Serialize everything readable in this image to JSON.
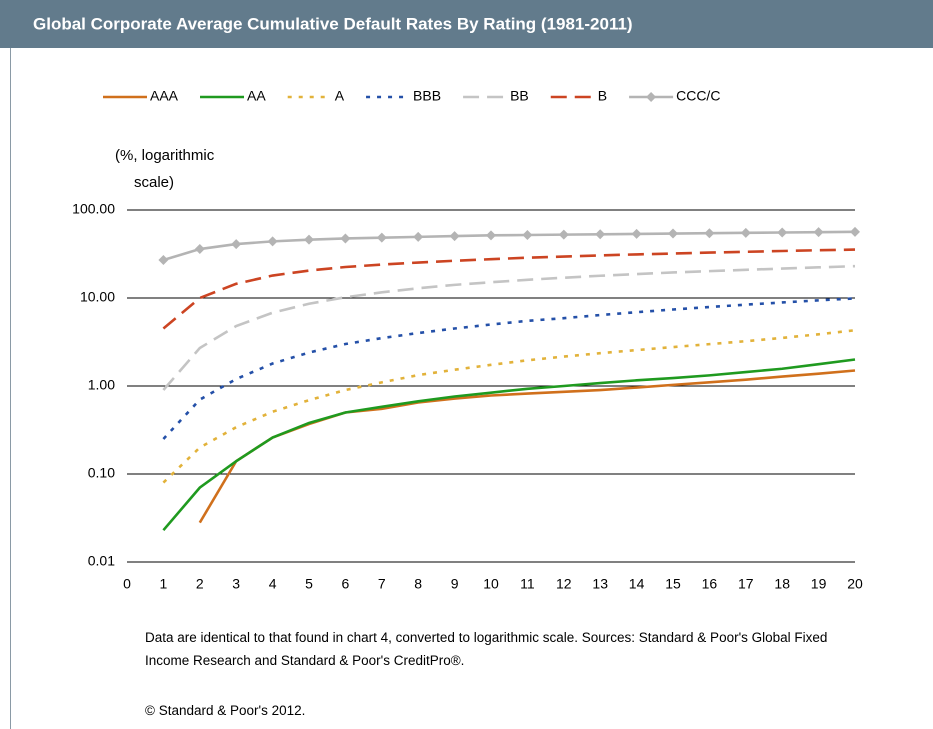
{
  "chart_data": {
    "type": "line",
    "title": "Global Corporate Average Cumulative Default Rates By Rating (1981-2011)",
    "ylabel": [
      "(%, logarithmic",
      "scale)"
    ],
    "x": [
      1,
      2,
      3,
      4,
      5,
      6,
      7,
      8,
      9,
      10,
      11,
      12,
      13,
      14,
      15,
      16,
      17,
      18,
      19,
      20
    ],
    "xlim": [
      0,
      20
    ],
    "xticks": [
      0,
      1,
      2,
      3,
      4,
      5,
      6,
      7,
      8,
      9,
      10,
      11,
      12,
      13,
      14,
      15,
      16,
      17,
      18,
      19,
      20
    ],
    "ylim": [
      0.01,
      100
    ],
    "yticks": [
      {
        "value": 0.01,
        "label": "0.01"
      },
      {
        "value": 0.1,
        "label": "0.10"
      },
      {
        "value": 1,
        "label": "1.00"
      },
      {
        "value": 10,
        "label": "10.00"
      },
      {
        "value": 100,
        "label": "100.00"
      }
    ],
    "log_scale": true,
    "grid": true,
    "legend": "top",
    "series": [
      {
        "name": "AAA",
        "color": "#d0701c",
        "style": "solid",
        "values": [
          null,
          0.028,
          0.14,
          0.26,
          0.37,
          0.5,
          0.55,
          0.65,
          0.72,
          0.78,
          0.82,
          0.86,
          0.9,
          0.96,
          1.03,
          1.1,
          1.18,
          1.28,
          1.38,
          1.5
        ]
      },
      {
        "name": "AA",
        "color": "#1f9a1f",
        "style": "solid",
        "values": [
          0.023,
          0.07,
          0.14,
          0.26,
          0.38,
          0.5,
          0.58,
          0.67,
          0.76,
          0.84,
          0.93,
          1.0,
          1.08,
          1.16,
          1.23,
          1.32,
          1.44,
          1.57,
          1.77,
          2.0
        ]
      },
      {
        "name": "A",
        "color": "#e2b23a",
        "style": "dotted",
        "values": [
          0.08,
          0.2,
          0.34,
          0.51,
          0.69,
          0.9,
          1.1,
          1.33,
          1.53,
          1.74,
          1.96,
          2.16,
          2.36,
          2.56,
          2.77,
          2.99,
          3.23,
          3.52,
          3.87,
          4.3
        ]
      },
      {
        "name": "BBB",
        "color": "#2450a8",
        "style": "dotted",
        "values": [
          0.25,
          0.7,
          1.2,
          1.8,
          2.4,
          3.0,
          3.5,
          4.0,
          4.5,
          5.0,
          5.5,
          5.9,
          6.4,
          6.9,
          7.4,
          7.9,
          8.4,
          8.9,
          9.4,
          9.9
        ]
      },
      {
        "name": "BB",
        "color": "#c4c4c4",
        "style": "dashed",
        "values": [
          0.9,
          2.7,
          4.8,
          6.8,
          8.6,
          10.2,
          11.6,
          12.9,
          14.1,
          15.1,
          16.1,
          17.0,
          17.9,
          18.7,
          19.5,
          20.2,
          20.9,
          21.6,
          22.3,
          23.0
        ]
      },
      {
        "name": "B",
        "color": "#cc4422",
        "style": "dashed",
        "values": [
          4.5,
          10.0,
          14.5,
          18.0,
          20.5,
          22.5,
          24.0,
          25.3,
          26.5,
          27.6,
          28.7,
          29.6,
          30.5,
          31.3,
          32.0,
          32.8,
          33.5,
          34.2,
          34.9,
          35.5
        ]
      },
      {
        "name": "CCC/C",
        "color": "#b4b4b4",
        "style": "solid",
        "marker": "diamond",
        "values": [
          27,
          36,
          41,
          44,
          46,
          47.5,
          48.5,
          49.5,
          50.5,
          51.5,
          52,
          52.5,
          53,
          53.5,
          54,
          54.5,
          55,
          55.5,
          56,
          56.5
        ]
      }
    ],
    "notes": [
      "Data are identical to that found in chart 4, converted to logarithmic scale. Sources: Standard & Poor's Global Fixed Income Research and Standard & Poor's CreditPro®.",
      "© Standard & Poor's 2012."
    ]
  }
}
